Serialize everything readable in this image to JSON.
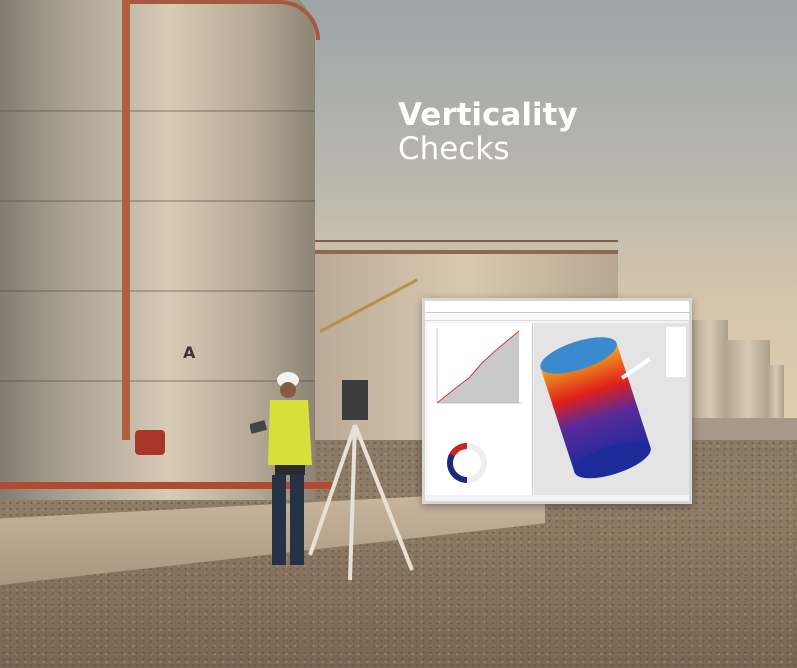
{
  "headline": {
    "line1": "Verticality",
    "line2": "Checks"
  },
  "tank_marking": "A",
  "colors": {
    "sky_top": "#9ea5a8",
    "sky_horizon": "#e4cfae",
    "pipe": "#b24a32",
    "vest": "#d6e03a",
    "heatmap_hot": "#e0201a",
    "heatmap_cold": "#1c2a9a"
  },
  "inset_panel": {
    "description_icons": [
      "close-icon",
      "settings-icon"
    ],
    "chart_type": "line"
  }
}
